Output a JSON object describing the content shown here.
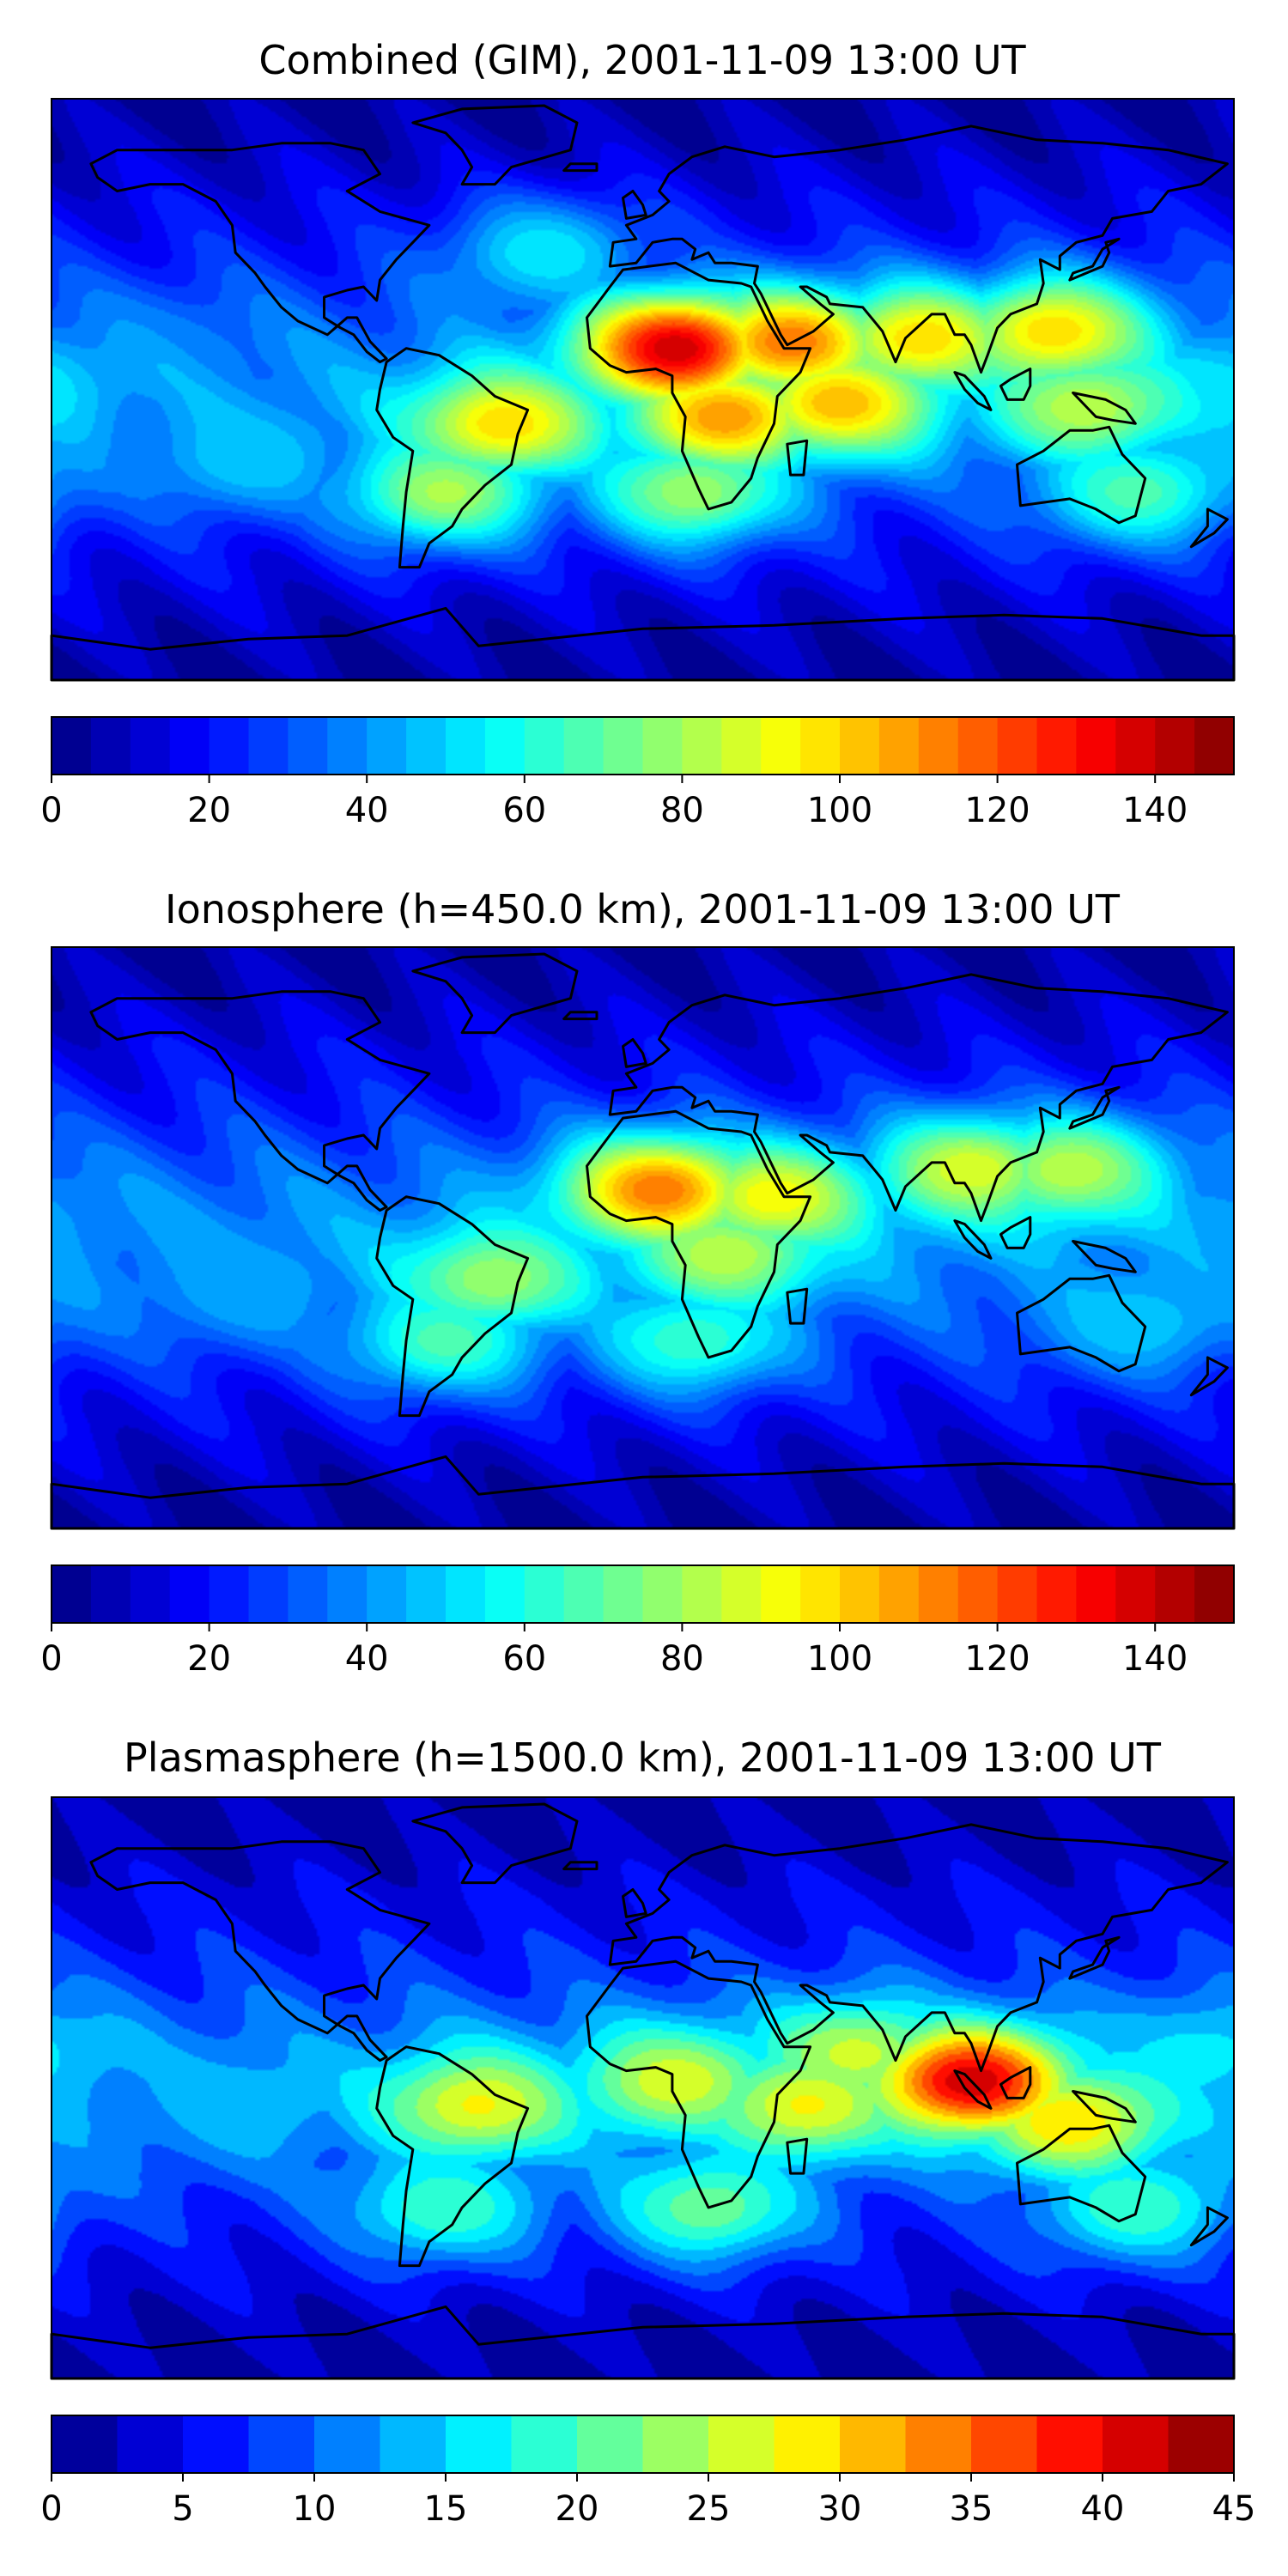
{
  "chart_data": [
    {
      "type": "heatmap",
      "title": "Combined (GIM), 2001-11-09 13:00 UT",
      "xlabel": "",
      "ylabel": "",
      "colormap": "jet",
      "colorbar": {
        "range": [
          0,
          150
        ],
        "ticks": [
          "0",
          "20",
          "40",
          "60",
          "80",
          "100",
          "120",
          "140"
        ],
        "levels": 30,
        "orientation": "horizontal"
      },
      "grid": false,
      "blobs": [
        {
          "lon": 10,
          "lat": 12,
          "value": 140
        },
        {
          "lon": 45,
          "lat": 14,
          "value": 115
        },
        {
          "lon": 85,
          "lat": 15,
          "value": 100
        },
        {
          "lon": 125,
          "lat": 17,
          "value": 100
        },
        {
          "lon": 60,
          "lat": -4,
          "value": 105
        },
        {
          "lon": 25,
          "lat": -8,
          "value": 110
        },
        {
          "lon": -42,
          "lat": -10,
          "value": 100
        },
        {
          "lon": -60,
          "lat": -30,
          "value": 82
        },
        {
          "lon": 15,
          "lat": -30,
          "value": 80
        },
        {
          "lon": 135,
          "lat": -5,
          "value": 85
        },
        {
          "lon": 150,
          "lat": -30,
          "value": 68
        },
        {
          "lon": -120,
          "lat": -20,
          "value": 50
        },
        {
          "lon": -150,
          "lat": 10,
          "value": 40
        },
        {
          "lon": 170,
          "lat": 0,
          "value": 55
        },
        {
          "lon": -30,
          "lat": 40,
          "value": 55
        }
      ]
    },
    {
      "type": "heatmap",
      "title": "Ionosphere  (h=450.0 km), 2001-11-09 13:00 UT",
      "xlabel": "",
      "ylabel": "",
      "colormap": "jet",
      "colorbar": {
        "range": [
          0,
          150
        ],
        "ticks": [
          "0",
          "20",
          "40",
          "60",
          "80",
          "100",
          "120",
          "140"
        ],
        "levels": 30,
        "orientation": "horizontal"
      },
      "grid": false,
      "blobs": [
        {
          "lon": 5,
          "lat": 14,
          "value": 115
        },
        {
          "lon": 40,
          "lat": 12,
          "value": 95
        },
        {
          "lon": 100,
          "lat": 20,
          "value": 90
        },
        {
          "lon": 130,
          "lat": 20,
          "value": 85
        },
        {
          "lon": 25,
          "lat": -5,
          "value": 85
        },
        {
          "lon": -45,
          "lat": -12,
          "value": 80
        },
        {
          "lon": -60,
          "lat": -30,
          "value": 68
        },
        {
          "lon": 15,
          "lat": -30,
          "value": 65
        },
        {
          "lon": 150,
          "lat": -25,
          "value": 50
        },
        {
          "lon": -120,
          "lat": -15,
          "value": 45
        },
        {
          "lon": 170,
          "lat": 5,
          "value": 42
        }
      ]
    },
    {
      "type": "heatmap",
      "title": "Plasmasphere (h=1500.0 km), 2001-11-09 13:00 UT",
      "xlabel": "",
      "ylabel": "",
      "colormap": "jet",
      "colorbar": {
        "range": [
          0,
          45
        ],
        "ticks": [
          "0",
          "5",
          "10",
          "15",
          "20",
          "25",
          "30",
          "35",
          "40",
          "45"
        ],
        "levels": 18,
        "orientation": "horizontal"
      },
      "grid": false,
      "blobs": [
        {
          "lon": 100,
          "lat": 2,
          "value": 42
        },
        {
          "lon": 130,
          "lat": -10,
          "value": 30
        },
        {
          "lon": -50,
          "lat": -5,
          "value": 28
        },
        {
          "lon": 10,
          "lat": 2,
          "value": 27
        },
        {
          "lon": 50,
          "lat": -5,
          "value": 28
        },
        {
          "lon": 65,
          "lat": 10,
          "value": 26
        },
        {
          "lon": 20,
          "lat": -35,
          "value": 22
        },
        {
          "lon": -60,
          "lat": -35,
          "value": 20
        },
        {
          "lon": 150,
          "lat": -35,
          "value": 20
        },
        {
          "lon": -120,
          "lat": -5,
          "value": 14
        },
        {
          "lon": 170,
          "lat": 10,
          "value": 16
        }
      ]
    }
  ]
}
